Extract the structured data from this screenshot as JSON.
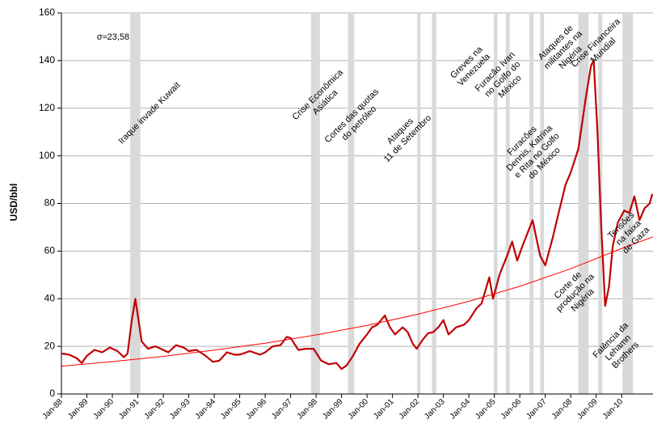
{
  "chart_data": {
    "type": "line",
    "ylabel": "USD/bbl",
    "annotation_sigma": "σ≈23,58",
    "xlim": [
      1988,
      2011.23
    ],
    "xticks": [
      {
        "value": 1988,
        "label": "Jan-88"
      },
      {
        "value": 1989,
        "label": "Jan-89"
      },
      {
        "value": 1990,
        "label": "Jan-90"
      },
      {
        "value": 1991,
        "label": "Jan-91"
      },
      {
        "value": 1992,
        "label": "Jan-92"
      },
      {
        "value": 1993,
        "label": "Jan-93"
      },
      {
        "value": 1994,
        "label": "Jan-94"
      },
      {
        "value": 1995,
        "label": "Jan-95"
      },
      {
        "value": 1996,
        "label": "Jan-96"
      },
      {
        "value": 1997,
        "label": "Jan-97"
      },
      {
        "value": 1998,
        "label": "Jan-98"
      },
      {
        "value": 1999,
        "label": "Jan-99"
      },
      {
        "value": 2000,
        "label": "Jan-00"
      },
      {
        "value": 2001,
        "label": "Jan-01"
      },
      {
        "value": 2002,
        "label": "Jan-02"
      },
      {
        "value": 2003,
        "label": "Jan-03"
      },
      {
        "value": 2004,
        "label": "Jan-04"
      },
      {
        "value": 2005,
        "label": "Jan-05"
      },
      {
        "value": 2006,
        "label": "Jan-06"
      },
      {
        "value": 2007,
        "label": "Jan-07"
      },
      {
        "value": 2008,
        "label": "Jan-08"
      },
      {
        "value": 2009,
        "label": "Jan-09"
      },
      {
        "value": 2010,
        "label": "Jan-10"
      }
    ],
    "ylim": [
      0,
      160
    ],
    "yticks": [
      0,
      20,
      40,
      60,
      80,
      100,
      120,
      140,
      160
    ],
    "grid": true,
    "band_color": "#d9d9d9",
    "bands": [
      [
        1990.7,
        1991.1
      ],
      [
        1997.8,
        1998.15
      ],
      [
        1999.25,
        1999.5
      ],
      [
        2001.97,
        2002.1
      ],
      [
        2002.55,
        2002.72
      ],
      [
        2004.98,
        2005.12
      ],
      [
        2005.45,
        2005.6
      ],
      [
        2006.38,
        2006.54
      ],
      [
        2006.8,
        2006.95
      ],
      [
        2008.3,
        2008.7
      ],
      [
        2009.08,
        2009.24
      ],
      [
        2010.03,
        2010.44
      ]
    ],
    "series": [
      {
        "color": "#c00000",
        "x": [
          1988.0,
          1988.3,
          1988.6,
          1988.8,
          1989.0,
          1989.3,
          1989.6,
          1989.9,
          1990.2,
          1990.45,
          1990.6,
          1990.75,
          1990.9,
          1991.0,
          1991.15,
          1991.4,
          1991.7,
          1991.9,
          1992.2,
          1992.5,
          1992.8,
          1993.0,
          1993.3,
          1993.6,
          1993.95,
          1994.2,
          1994.5,
          1994.8,
          1995.0,
          1995.4,
          1995.8,
          1996.0,
          1996.3,
          1996.6,
          1996.85,
          1997.0,
          1997.3,
          1997.6,
          1997.9,
          1998.2,
          1998.5,
          1998.8,
          1999.0,
          1999.2,
          1999.45,
          1999.7,
          2000.0,
          2000.2,
          2000.4,
          2000.7,
          2000.9,
          2001.1,
          2001.4,
          2001.6,
          2001.8,
          2001.95,
          2002.2,
          2002.4,
          2002.6,
          2002.8,
          2003.0,
          2003.2,
          2003.5,
          2003.8,
          2004.0,
          2004.3,
          2004.5,
          2004.8,
          2004.95,
          2005.2,
          2005.5,
          2005.7,
          2005.9,
          2006.1,
          2006.5,
          2006.8,
          2007.0,
          2007.3,
          2007.5,
          2007.8,
          2008.0,
          2008.3,
          2008.6,
          2008.8,
          2008.9,
          2009.05,
          2009.2,
          2009.35,
          2009.5,
          2009.65,
          2009.85,
          2010.1,
          2010.3,
          2010.5,
          2010.7,
          2010.9,
          2011.1,
          2011.2
        ],
        "values": [
          17,
          16.5,
          15,
          13,
          16,
          18.5,
          17.5,
          19.5,
          18,
          15.5,
          17,
          30,
          40,
          33,
          22,
          19,
          20,
          19,
          17.5,
          20.5,
          19.5,
          18,
          18.5,
          16.5,
          13.5,
          14,
          17.5,
          16.5,
          16.5,
          18,
          16.5,
          17.5,
          20,
          20.5,
          24,
          23.5,
          18.5,
          19,
          19,
          14,
          12.5,
          13,
          10.5,
          12,
          16,
          21,
          25,
          28,
          29,
          33,
          28,
          25,
          28,
          26,
          21,
          19,
          23,
          25.5,
          26,
          28,
          31,
          25,
          28,
          29,
          31,
          36,
          38,
          49,
          40,
          50,
          58,
          64,
          56,
          62,
          73,
          58,
          54,
          66,
          75,
          88,
          93,
          103,
          125,
          138,
          140,
          110,
          70,
          37,
          45,
          62,
          72,
          77,
          76,
          83,
          73,
          78,
          80,
          84
        ]
      },
      {
        "color": "#ff0000",
        "x": [
          1988,
          1990,
          1992,
          1994,
          1996,
          1998,
          2000,
          2002,
          2004,
          2006,
          2008,
          2010,
          2011.23
        ],
        "values": [
          11.7,
          13.6,
          15.8,
          18.4,
          21.3,
          24.8,
          28.8,
          33.5,
          38.9,
          45.2,
          52.6,
          61.1,
          66.0
        ]
      }
    ],
    "annotations": [
      {
        "lines": [
          "Iraque invade Kuwait"
        ]
      },
      {
        "lines": [
          "Crise Econômica",
          "Asiática"
        ]
      },
      {
        "lines": [
          "Cortes das quotas",
          "do petróleo"
        ]
      },
      {
        "lines": [
          "Ataques",
          "11 de Setembro"
        ]
      },
      {
        "lines": [
          "Greves na",
          "Venezuela"
        ]
      },
      {
        "lines": [
          "Furacão Ivan",
          "no Golfo do",
          "México"
        ]
      },
      {
        "lines": [
          "Ataques de",
          "militantes na",
          "Nigéria"
        ]
      },
      {
        "lines": [
          "Crise Financeira",
          "Mundial"
        ]
      },
      {
        "lines": [
          "Furacões",
          "Dennis, Katrina",
          "e Rita no Golfo",
          "do México"
        ]
      },
      {
        "lines": [
          "Tensões",
          "na faixa",
          "de Gaza"
        ]
      },
      {
        "lines": [
          "Corte de",
          "produção na",
          "Nigéria"
        ]
      },
      {
        "lines": [
          "Falência da",
          "Lehamn",
          "Brothers"
        ]
      }
    ]
  }
}
